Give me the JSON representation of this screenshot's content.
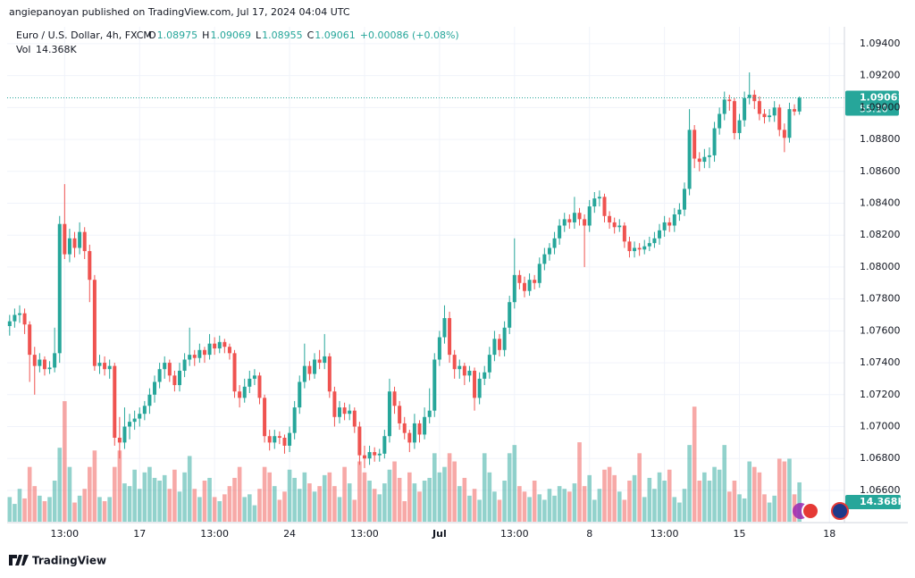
{
  "chart_data": {
    "type": "candlestick",
    "header": "angiepanoyan published on TradingView.com, Jul 17, 2024 04:04 UTC",
    "symbol": "Euro / U.S. Dollar, 4h, FXCM",
    "ohlc_names": [
      "O",
      "H",
      "L",
      "C"
    ],
    "change": "+0.00086 (+0.08%)",
    "countdown": "55:10",
    "brand": "TradingView",
    "up_color": "#26a69a",
    "down_color": "#ef5350",
    "grid": true,
    "xlim": [
      -0.5,
      167
    ],
    "xticks": [
      {
        "value": 11,
        "label": "13:00"
      },
      {
        "value": 26,
        "label": "17"
      },
      {
        "value": 41,
        "label": "13:00"
      },
      {
        "value": 56,
        "label": "24"
      },
      {
        "value": 71,
        "label": "13:00"
      },
      {
        "value": 86,
        "label": "Jul"
      },
      {
        "value": 101,
        "label": "13:00"
      },
      {
        "value": 116,
        "label": "8"
      },
      {
        "value": 131,
        "label": "13:00"
      },
      {
        "value": 146,
        "label": "15"
      },
      {
        "value": 164,
        "label": "18"
      }
    ],
    "ylim": [
      1.06398,
      1.09506
    ],
    "yticks": [
      {
        "value": 1.066,
        "label": "1.06600"
      },
      {
        "value": 1.068,
        "label": "1.06800"
      },
      {
        "value": 1.07,
        "label": "1.07000"
      },
      {
        "value": 1.072,
        "label": "1.07200"
      },
      {
        "value": 1.074,
        "label": "1.07400"
      },
      {
        "value": 1.076,
        "label": "1.07600"
      },
      {
        "value": 1.078,
        "label": "1.07800"
      },
      {
        "value": 1.08,
        "label": "1.08000"
      },
      {
        "value": 1.082,
        "label": "1.08200"
      },
      {
        "value": 1.084,
        "label": "1.08400"
      },
      {
        "value": 1.086,
        "label": "1.08600"
      },
      {
        "value": 1.088,
        "label": "1.08800"
      },
      {
        "value": 1.09,
        "label": "1.09000"
      },
      {
        "value": 1.092,
        "label": "1.09200"
      },
      {
        "value": 1.094,
        "label": "1.09400"
      }
    ],
    "candles": [
      [
        1.0763,
        1.077,
        1.0757,
        1.0766
      ],
      [
        1.0766,
        1.0774,
        1.0762,
        1.077
      ],
      [
        1.077,
        1.0776,
        1.0765,
        1.0771
      ],
      [
        1.0771,
        1.0774,
        1.0758,
        1.0764
      ],
      [
        1.0764,
        1.0766,
        1.0728,
        1.0745
      ],
      [
        1.0745,
        1.075,
        1.072,
        1.0738
      ],
      [
        1.0738,
        1.0746,
        1.0734,
        1.0742
      ],
      [
        1.0742,
        1.0744,
        1.0732,
        1.0736
      ],
      [
        1.0736,
        1.0741,
        1.0733,
        1.0737
      ],
      [
        1.0737,
        1.0762,
        1.0734,
        1.0746
      ],
      [
        1.0746,
        1.0832,
        1.074,
        1.0827
      ],
      [
        1.0827,
        1.0852,
        1.0805,
        1.0808
      ],
      [
        1.0808,
        1.0824,
        1.0803,
        1.0818
      ],
      [
        1.0818,
        1.0822,
        1.0806,
        1.0812
      ],
      [
        1.0812,
        1.0828,
        1.0808,
        1.0822
      ],
      [
        1.0822,
        1.0825,
        1.0805,
        1.081
      ],
      [
        1.081,
        1.0814,
        1.0778,
        1.0792
      ],
      [
        1.0792,
        1.0795,
        1.0735,
        1.0738
      ],
      [
        1.0738,
        1.0745,
        1.0733,
        1.074
      ],
      [
        1.074,
        1.0744,
        1.0732,
        1.0736
      ],
      [
        1.0736,
        1.0742,
        1.073,
        1.0738
      ],
      [
        1.0738,
        1.074,
        1.0688,
        1.0693
      ],
      [
        1.0693,
        1.0706,
        1.068,
        1.069
      ],
      [
        1.069,
        1.0712,
        1.0686,
        1.07
      ],
      [
        1.07,
        1.0708,
        1.0692,
        1.0703
      ],
      [
        1.0703,
        1.071,
        1.0698,
        1.0705
      ],
      [
        1.0705,
        1.0712,
        1.07,
        1.0708
      ],
      [
        1.0708,
        1.0716,
        1.0704,
        1.0713
      ],
      [
        1.0713,
        1.0724,
        1.0708,
        1.072
      ],
      [
        1.072,
        1.0732,
        1.0715,
        1.0728
      ],
      [
        1.0728,
        1.074,
        1.0724,
        1.0736
      ],
      [
        1.0736,
        1.0744,
        1.073,
        1.074
      ],
      [
        1.074,
        1.0742,
        1.0728,
        1.0732
      ],
      [
        1.0732,
        1.0735,
        1.0722,
        1.0726
      ],
      [
        1.0726,
        1.074,
        1.0722,
        1.0735
      ],
      [
        1.0735,
        1.0746,
        1.0731,
        1.0742
      ],
      [
        1.0742,
        1.0762,
        1.0738,
        1.0745
      ],
      [
        1.0745,
        1.0748,
        1.0738,
        1.0743
      ],
      [
        1.0743,
        1.0752,
        1.074,
        1.0748
      ],
      [
        1.0748,
        1.075,
        1.074,
        1.0745
      ],
      [
        1.0745,
        1.0758,
        1.0742,
        1.0752
      ],
      [
        1.0752,
        1.0756,
        1.0745,
        1.0749
      ],
      [
        1.0749,
        1.0757,
        1.0746,
        1.0753
      ],
      [
        1.0753,
        1.0755,
        1.0746,
        1.075
      ],
      [
        1.075,
        1.0752,
        1.0742,
        1.0746
      ],
      [
        1.0746,
        1.0748,
        1.0718,
        1.0722
      ],
      [
        1.0722,
        1.0726,
        1.0712,
        1.0718
      ],
      [
        1.0718,
        1.073,
        1.0715,
        1.0725
      ],
      [
        1.0725,
        1.0735,
        1.0721,
        1.073
      ],
      [
        1.073,
        1.0736,
        1.0726,
        1.0732
      ],
      [
        1.0732,
        1.0734,
        1.0714,
        1.0718
      ],
      [
        1.0718,
        1.072,
        1.069,
        1.0694
      ],
      [
        1.0694,
        1.0698,
        1.0685,
        1.069
      ],
      [
        1.069,
        1.0698,
        1.0686,
        1.0694
      ],
      [
        1.0694,
        1.0697,
        1.0689,
        1.0693
      ],
      [
        1.0693,
        1.0695,
        1.0683,
        1.0688
      ],
      [
        1.0688,
        1.07,
        1.0684,
        1.0696
      ],
      [
        1.0696,
        1.0716,
        1.0692,
        1.0712
      ],
      [
        1.0712,
        1.0732,
        1.0708,
        1.0728
      ],
      [
        1.0728,
        1.0752,
        1.0724,
        1.0738
      ],
      [
        1.0738,
        1.0741,
        1.0729,
        1.0733
      ],
      [
        1.0733,
        1.0746,
        1.073,
        1.0742
      ],
      [
        1.0742,
        1.0748,
        1.0736,
        1.074
      ],
      [
        1.074,
        1.0758,
        1.0736,
        1.0744
      ],
      [
        1.0744,
        1.0746,
        1.0718,
        1.0722
      ],
      [
        1.0722,
        1.0725,
        1.07,
        1.0706
      ],
      [
        1.0706,
        1.0716,
        1.0702,
        1.0712
      ],
      [
        1.0712,
        1.0715,
        1.0704,
        1.0708
      ],
      [
        1.0708,
        1.0714,
        1.0704,
        1.071
      ],
      [
        1.071,
        1.0712,
        1.0696,
        1.07
      ],
      [
        1.07,
        1.0703,
        1.0676,
        1.0682
      ],
      [
        1.0682,
        1.0688,
        1.0674,
        1.068
      ],
      [
        1.068,
        1.0688,
        1.0676,
        1.0684
      ],
      [
        1.0684,
        1.0687,
        1.0678,
        1.0682
      ],
      [
        1.0682,
        1.0686,
        1.0678,
        1.0683
      ],
      [
        1.0683,
        1.0698,
        1.068,
        1.0694
      ],
      [
        1.0694,
        1.073,
        1.069,
        1.0722
      ],
      [
        1.0722,
        1.0725,
        1.0708,
        1.0713
      ],
      [
        1.0713,
        1.0716,
        1.0698,
        1.0702
      ],
      [
        1.0702,
        1.0706,
        1.0692,
        1.0696
      ],
      [
        1.0696,
        1.0698,
        1.0684,
        1.069
      ],
      [
        1.069,
        1.0708,
        1.0686,
        1.0702
      ],
      [
        1.0702,
        1.0704,
        1.069,
        1.0695
      ],
      [
        1.0695,
        1.0712,
        1.0692,
        1.0706
      ],
      [
        1.0706,
        1.0724,
        1.0702,
        1.071
      ],
      [
        1.071,
        1.0746,
        1.0706,
        1.0742
      ],
      [
        1.0742,
        1.076,
        1.0738,
        1.0756
      ],
      [
        1.0756,
        1.0776,
        1.0752,
        1.0768
      ],
      [
        1.0768,
        1.0772,
        1.074,
        1.0745
      ],
      [
        1.0745,
        1.0748,
        1.073,
        1.0736
      ],
      [
        1.0736,
        1.0742,
        1.073,
        1.0738
      ],
      [
        1.0738,
        1.074,
        1.0726,
        1.0732
      ],
      [
        1.0732,
        1.0738,
        1.0728,
        1.0735
      ],
      [
        1.0735,
        1.0737,
        1.071,
        1.0718
      ],
      [
        1.0718,
        1.0734,
        1.0714,
        1.073
      ],
      [
        1.073,
        1.0738,
        1.0726,
        1.0734
      ],
      [
        1.0734,
        1.075,
        1.073,
        1.0745
      ],
      [
        1.0745,
        1.076,
        1.0741,
        1.0755
      ],
      [
        1.0755,
        1.0758,
        1.0744,
        1.0748
      ],
      [
        1.0748,
        1.0766,
        1.0744,
        1.0762
      ],
      [
        1.0762,
        1.0782,
        1.0758,
        1.0778
      ],
      [
        1.0778,
        1.0818,
        1.0774,
        1.0795
      ],
      [
        1.0795,
        1.0798,
        1.0786,
        1.079
      ],
      [
        1.079,
        1.0794,
        1.0781,
        1.0785
      ],
      [
        1.0785,
        1.0796,
        1.0782,
        1.0792
      ],
      [
        1.0792,
        1.0795,
        1.0786,
        1.079
      ],
      [
        1.079,
        1.0806,
        1.0787,
        1.0802
      ],
      [
        1.0802,
        1.0812,
        1.0798,
        1.0808
      ],
      [
        1.0808,
        1.0815,
        1.0804,
        1.0812
      ],
      [
        1.0812,
        1.0822,
        1.0808,
        1.0818
      ],
      [
        1.0818,
        1.083,
        1.0814,
        1.0826
      ],
      [
        1.0826,
        1.0834,
        1.0822,
        1.083
      ],
      [
        1.083,
        1.0833,
        1.0824,
        1.0828
      ],
      [
        1.0828,
        1.0844,
        1.0824,
        1.0834
      ],
      [
        1.0834,
        1.0837,
        1.0826,
        1.083
      ],
      [
        1.083,
        1.0833,
        1.08,
        1.0826
      ],
      [
        1.0826,
        1.0842,
        1.0822,
        1.0838
      ],
      [
        1.0838,
        1.0847,
        1.0834,
        1.0843
      ],
      [
        1.0843,
        1.0848,
        1.0838,
        1.0844
      ],
      [
        1.0844,
        1.0846,
        1.0828,
        1.0832
      ],
      [
        1.0832,
        1.0835,
        1.0824,
        1.0828
      ],
      [
        1.0828,
        1.0831,
        1.0821,
        1.0825
      ],
      [
        1.0825,
        1.083,
        1.0822,
        1.0826
      ],
      [
        1.0826,
        1.0828,
        1.0812,
        1.0816
      ],
      [
        1.0816,
        1.0819,
        1.0806,
        1.081
      ],
      [
        1.081,
        1.0816,
        1.0806,
        1.0812
      ],
      [
        1.0812,
        1.0815,
        1.0807,
        1.0811
      ],
      [
        1.0811,
        1.0817,
        1.0808,
        1.0813
      ],
      [
        1.0813,
        1.0819,
        1.081,
        1.0815
      ],
      [
        1.0815,
        1.0822,
        1.0812,
        1.0818
      ],
      [
        1.0818,
        1.0827,
        1.0814,
        1.0823
      ],
      [
        1.0823,
        1.0832,
        1.0819,
        1.0828
      ],
      [
        1.0828,
        1.0831,
        1.0822,
        1.0826
      ],
      [
        1.0826,
        1.0837,
        1.0822,
        1.0833
      ],
      [
        1.0833,
        1.084,
        1.0829,
        1.0836
      ],
      [
        1.0836,
        1.0853,
        1.0832,
        1.0849
      ],
      [
        1.0849,
        1.0899,
        1.0845,
        1.0886
      ],
      [
        1.0886,
        1.0889,
        1.0862,
        1.0868
      ],
      [
        1.0868,
        1.0872,
        1.086,
        1.0866
      ],
      [
        1.0866,
        1.0874,
        1.0862,
        1.0869
      ],
      [
        1.0869,
        1.0875,
        1.0862,
        1.087
      ],
      [
        1.087,
        1.0891,
        1.0866,
        1.0887
      ],
      [
        1.0887,
        1.09,
        1.0883,
        1.0896
      ],
      [
        1.0896,
        1.091,
        1.0892,
        1.0905
      ],
      [
        1.0905,
        1.0908,
        1.0898,
        1.0904
      ],
      [
        1.0904,
        1.0906,
        1.088,
        1.0884
      ],
      [
        1.0884,
        1.0896,
        1.088,
        1.0892
      ],
      [
        1.0892,
        1.091,
        1.0888,
        1.0906
      ],
      [
        1.0906,
        1.0922,
        1.0902,
        1.0908
      ],
      [
        1.0908,
        1.0911,
        1.0899,
        1.0904
      ],
      [
        1.0904,
        1.0907,
        1.0892,
        1.0896
      ],
      [
        1.0896,
        1.0899,
        1.089,
        1.0894
      ],
      [
        1.0894,
        1.0899,
        1.0891,
        1.0895
      ],
      [
        1.0895,
        1.0904,
        1.0891,
        1.09
      ],
      [
        1.09,
        1.0902,
        1.0882,
        1.0886
      ],
      [
        1.0886,
        1.089,
        1.0872,
        1.0881
      ],
      [
        1.0881,
        1.0903,
        1.0878,
        1.0899
      ],
      [
        1.0899,
        1.0902,
        1.0895,
        1.08975
      ],
      [
        1.08975,
        1.09069,
        1.08955,
        1.09061
      ]
    ],
    "vlim": [
      0,
      60000
    ],
    "volume": {
      "name": "Vol",
      "value_label": "14.368K",
      "values": [
        9000,
        6500,
        12000,
        8500,
        20000,
        13000,
        9500,
        7500,
        9000,
        15000,
        27000,
        44000,
        20000,
        7000,
        9500,
        12000,
        20000,
        26000,
        9000,
        7500,
        9000,
        20000,
        26000,
        14000,
        13000,
        19000,
        12000,
        18000,
        20000,
        16000,
        15000,
        17000,
        12000,
        19000,
        11000,
        18000,
        24000,
        12000,
        9000,
        15000,
        16000,
        9000,
        7500,
        10000,
        13000,
        16000,
        20000,
        9000,
        10000,
        6000,
        12000,
        20000,
        18000,
        13000,
        8000,
        11000,
        19000,
        16000,
        12000,
        18000,
        14000,
        11000,
        13000,
        17000,
        18000,
        13000,
        9000,
        20000,
        14000,
        8000,
        22000,
        18000,
        15000,
        12000,
        10000,
        14000,
        19000,
        22000,
        16000,
        7500,
        18000,
        14000,
        11000,
        15000,
        16000,
        25000,
        18000,
        20000,
        25000,
        22000,
        13000,
        16000,
        9500,
        12000,
        8000,
        25000,
        18000,
        11000,
        8000,
        15000,
        25000,
        28000,
        13000,
        11000,
        9000,
        15000,
        10000,
        8000,
        12000,
        9500,
        13000,
        12000,
        11000,
        14000,
        29000,
        13000,
        17000,
        8000,
        12000,
        19000,
        20000,
        17000,
        11000,
        8000,
        15000,
        17000,
        25000,
        9000,
        16000,
        12000,
        18000,
        15000,
        19000,
        9000,
        7000,
        12000,
        28000,
        42000,
        15000,
        18000,
        15000,
        20000,
        19000,
        28000,
        11000,
        15000,
        10000,
        8500,
        22000,
        20000,
        18000,
        10000,
        7000,
        9500,
        23000,
        22000,
        23000,
        10000,
        14368
      ]
    }
  }
}
